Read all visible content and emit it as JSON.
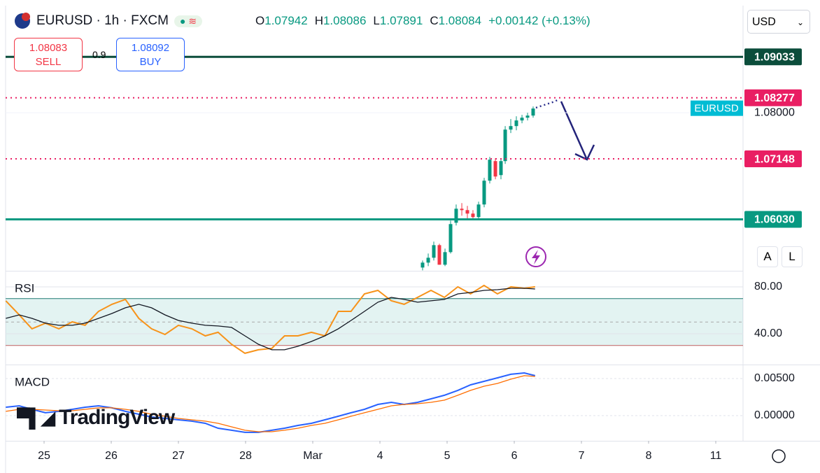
{
  "header": {
    "symbol": "EURUSD · 1h · FXCM",
    "ohlc": [
      {
        "k": "O",
        "v": "1.07942"
      },
      {
        "k": "H",
        "v": "1.08086"
      },
      {
        "k": "L",
        "v": "1.07891"
      },
      {
        "k": "C",
        "v": "1.08084"
      }
    ],
    "change": "+0.00142 (+0.13%)"
  },
  "trade": {
    "sell_price": "1.08083",
    "sell": "SELL",
    "spread": "0.9",
    "buy_price": "1.08092",
    "buy": "BUY"
  },
  "currency": "USD",
  "buttons": [
    "A",
    "L"
  ],
  "logo": "TradingView",
  "chart_data": [
    {
      "type": "candlestick",
      "color_up": "#089981",
      "color_down": "#f23645",
      "x": [
        5.635,
        5.719,
        5.802,
        5.885,
        5.969,
        6.052,
        6.135,
        6.219,
        6.302,
        6.385,
        6.469,
        6.552,
        6.635,
        6.719,
        6.802,
        6.865,
        6.948,
        7.031,
        7.115,
        7.198,
        7.281
      ],
      "open": [
        1.0514,
        1.05231,
        1.05321,
        1.05554,
        1.05192,
        1.05425,
        1.05968,
        1.06227,
        1.06201,
        1.06137,
        1.06072,
        1.06305,
        1.06745,
        1.07107,
        1.06848,
        1.07107,
        1.07689,
        1.07754,
        1.07858,
        1.07909,
        1.07948
      ],
      "close": [
        1.05231,
        1.05321,
        1.05554,
        1.05192,
        1.05425,
        1.05943,
        1.06227,
        1.06201,
        1.06137,
        1.06072,
        1.06305,
        1.06745,
        1.07133,
        1.06822,
        1.07107,
        1.07689,
        1.07754,
        1.07858,
        1.07909,
        1.07948,
        1.08078
      ],
      "high": [
        1.0527,
        1.05399,
        1.05619,
        1.0558,
        1.0549,
        1.06007,
        1.06305,
        1.06331,
        1.06279,
        1.06201,
        1.06357,
        1.06797,
        1.07185,
        1.07159,
        1.07159,
        1.07754,
        1.07884,
        1.07935,
        1.07961,
        1.08,
        1.08116
      ],
      "low": [
        1.05088,
        1.05166,
        1.0527,
        1.05192,
        1.05166,
        1.05399,
        1.05917,
        1.06098,
        1.06046,
        1.0602,
        1.0602,
        1.06253,
        1.06693,
        1.06771,
        1.06771,
        1.07055,
        1.07625,
        1.07676,
        1.07806,
        1.07858,
        1.07909
      ],
      "xlim": [
        -0.573,
        10.406
      ],
      "xticks": [
        {
          "value": 0,
          "label": "25"
        },
        {
          "value": 1,
          "label": "26"
        },
        {
          "value": 2,
          "label": "27"
        },
        {
          "value": 3,
          "label": "28"
        },
        {
          "value": 4,
          "label": "Mar"
        },
        {
          "value": 5,
          "label": "4"
        },
        {
          "value": 6,
          "label": "5"
        },
        {
          "value": 7,
          "label": "6"
        },
        {
          "value": 8,
          "label": "7"
        },
        {
          "value": 9,
          "label": "8"
        },
        {
          "value": 10,
          "label": "11"
        }
      ],
      "ylim": [
        1.0508,
        1.0998
      ],
      "yticks": [
        {
          "value": 1.08,
          "label": "1.08000"
        }
      ],
      "levels": [
        {
          "value": 1.09033,
          "label": "1.09033",
          "color": "#0b4d3b",
          "style": "solid"
        },
        {
          "value": 1.08277,
          "label": "1.08277",
          "color": "#e91e63",
          "style": "dotted"
        },
        {
          "value": 1.07148,
          "label": "1.07148",
          "color": "#e91e63",
          "style": "dotted"
        },
        {
          "value": 1.0603,
          "label": "1.06030",
          "color": "#089981",
          "style": "solid"
        }
      ],
      "last_price": {
        "name": "EURUSD",
        "value": 1.08084,
        "color": "#00bcd4"
      }
    },
    {
      "type": "line",
      "name": "RSI",
      "band": [
        30,
        70
      ],
      "band_color": "#26a69a",
      "x": [
        -0.57,
        -0.37,
        -0.18,
        0.02,
        0.22,
        0.42,
        0.61,
        0.81,
        1.01,
        1.21,
        1.41,
        1.6,
        1.8,
        2.0,
        2.2,
        2.4,
        2.59,
        2.79,
        2.99,
        3.19,
        3.39,
        3.58,
        3.78,
        3.98,
        4.18,
        4.38,
        4.57,
        4.77,
        4.97,
        5.17,
        5.36,
        5.56,
        5.76,
        5.96,
        6.16,
        6.35,
        6.55,
        6.75,
        6.95,
        7.15,
        7.31
      ],
      "ylim": [
        13.7,
        93.1
      ],
      "yticks": [
        {
          "value": 80,
          "label": "80.00"
        },
        {
          "value": 40,
          "label": "40.00"
        }
      ],
      "series": [
        {
          "color": "#f7931a",
          "values": [
            68.1,
            56.1,
            44.2,
            49.0,
            44.2,
            50.1,
            47.2,
            59.1,
            65.1,
            69.3,
            53.1,
            44.2,
            39.4,
            47.2,
            44.2,
            38.2,
            41.2,
            31.0,
            23.3,
            26.3,
            27.5,
            38.2,
            38.2,
            41.2,
            38.2,
            59.1,
            59.1,
            74.0,
            77.0,
            68.1,
            65.1,
            71.0,
            77.0,
            71.0,
            80.0,
            74.0,
            81.2,
            74.0,
            80.0,
            78.8,
            80.0
          ]
        },
        {
          "color": "#131722",
          "values": [
            53.1,
            56.1,
            53.1,
            49.0,
            47.2,
            47.2,
            49.0,
            53.1,
            57.3,
            62.1,
            65.1,
            62.1,
            56.1,
            51.3,
            49.0,
            47.2,
            46.6,
            45.4,
            38.2,
            31.0,
            26.3,
            26.3,
            29.3,
            33.4,
            38.2,
            44.2,
            51.3,
            59.1,
            66.9,
            71.0,
            69.3,
            66.9,
            68.1,
            69.3,
            74.0,
            75.2,
            77.0,
            77.6,
            78.8,
            78.8,
            78.2
          ]
        }
      ]
    },
    {
      "type": "line",
      "name": "MACD",
      "x": [
        -0.57,
        -0.37,
        -0.18,
        0.02,
        0.22,
        0.42,
        0.61,
        0.81,
        1.01,
        1.21,
        1.41,
        1.6,
        1.8,
        2.0,
        2.2,
        2.4,
        2.59,
        2.79,
        2.99,
        3.19,
        3.39,
        3.58,
        3.78,
        3.98,
        4.18,
        4.38,
        4.57,
        4.77,
        4.97,
        5.17,
        5.36,
        5.56,
        5.76,
        5.96,
        6.16,
        6.35,
        6.55,
        6.75,
        6.95,
        7.15,
        7.31
      ],
      "ylim": [
        -0.0034,
        0.00679
      ],
      "yticks": [
        {
          "value": 0.005,
          "label": "0.00500"
        },
        {
          "value": 0,
          "label": "0.00000"
        }
      ],
      "series": [
        {
          "color": "#2962ff",
          "values": [
            0.00113,
            0.00132,
            0.00085,
            0.00038,
            0.00057,
            0.00085,
            0.00113,
            0.00132,
            0.00104,
            0.00057,
            0.00019,
            -0.00019,
            -0.00038,
            -0.00057,
            -0.00075,
            -0.00104,
            -0.0017,
            -0.00198,
            -0.00226,
            -0.00226,
            -0.00198,
            -0.0017,
            -0.00132,
            -0.00104,
            -0.00057,
            -9e-05,
            0.00038,
            0.00085,
            0.00151,
            0.00179,
            0.00151,
            0.00179,
            0.00226,
            0.00274,
            0.0034,
            0.00415,
            0.00462,
            0.00509,
            0.00557,
            0.00575,
            0.00538
          ]
        },
        {
          "color": "#ff6d00",
          "values": [
            0.00057,
            0.00085,
            0.00085,
            0.00075,
            0.00066,
            0.00066,
            0.00085,
            0.00104,
            0.00104,
            0.00085,
            0.00057,
            0.00019,
            -9e-05,
            -0.00038,
            -0.00057,
            -0.00075,
            -0.00104,
            -0.00151,
            -0.00198,
            -0.00217,
            -0.00217,
            -0.00198,
            -0.0017,
            -0.00132,
            -0.00104,
            -0.00057,
            -9e-05,
            0.00038,
            0.00085,
            0.00132,
            0.00151,
            0.0016,
            0.00179,
            0.00208,
            0.00274,
            0.0034,
            0.00396,
            0.00434,
            0.00491,
            0.00538,
            0.00528
          ]
        }
      ]
    }
  ]
}
